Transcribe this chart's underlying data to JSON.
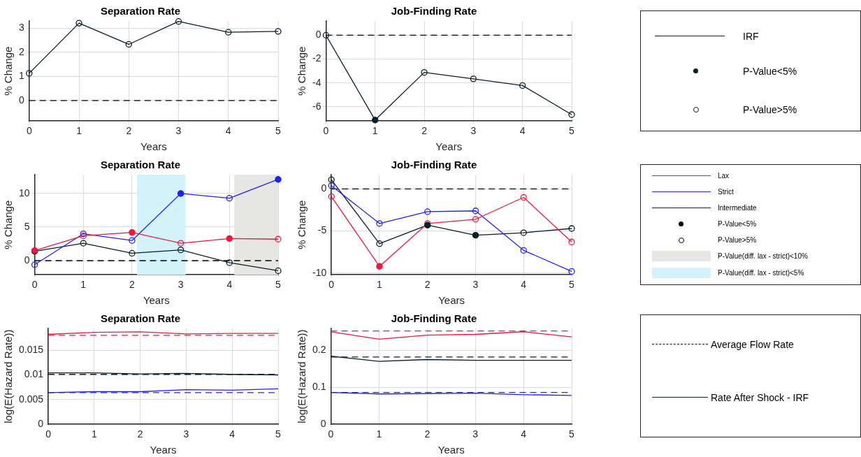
{
  "chart_data": [
    {
      "type": "line",
      "title": "Separation Rate",
      "xlabel": "Years",
      "ylabel": "% Change",
      "x": [
        0,
        1,
        2,
        3,
        4,
        5
      ],
      "xlim": [
        0,
        5
      ],
      "xticks": [
        0,
        1,
        2,
        3,
        4,
        5
      ],
      "ylim": [
        -0.85,
        3.3
      ],
      "yticks": [
        0,
        1,
        2,
        3
      ],
      "grid": true,
      "marker": "circle",
      "series": [
        {
          "color": "#0b1e2a",
          "values": [
            1.13,
            3.21,
            2.33,
            3.28,
            2.83,
            2.87
          ]
        }
      ],
      "ref_lines": [
        {
          "axis": "y",
          "value": 0,
          "color": "#000000",
          "line_style": "dashed"
        }
      ]
    },
    {
      "type": "line",
      "title": "Job-Finding Rate",
      "xlabel": "Years",
      "ylabel": "% Change",
      "x": [
        0,
        1,
        2,
        3,
        4,
        5
      ],
      "xlim": [
        0,
        5
      ],
      "xticks": [
        0,
        1,
        2,
        3,
        4,
        5
      ],
      "ylim": [
        -7.2,
        1.2
      ],
      "yticks": [
        -6,
        -4,
        -2,
        0
      ],
      "grid": true,
      "marker": "circle",
      "series": [
        {
          "color": "#0b1e2a",
          "values": [
            0,
            -7.12,
            -3.12,
            -3.66,
            -4.22,
            -6.66
          ]
        },
        {
          "type": "scatter",
          "color": "#0b1e2a",
          "x": [
            1
          ],
          "values": [
            -7.12
          ]
        }
      ],
      "ref_lines": [
        {
          "axis": "y",
          "value": 0,
          "color": "#000000",
          "line_style": "dashed"
        }
      ]
    },
    {
      "type": "other",
      "annotations": [
        "IRF",
        "P-Value<5%",
        "P-Value>5%"
      ]
    },
    {
      "type": "line",
      "title": "Separation Rate",
      "xlabel": "Years",
      "ylabel": "% Change",
      "x": [
        0,
        1,
        2,
        3,
        4,
        5
      ],
      "xlim": [
        0,
        5
      ],
      "xticks": [
        0,
        1,
        2,
        3,
        4,
        5
      ],
      "ylim": [
        -2.1,
        12.8
      ],
      "yticks": [
        0,
        5,
        10
      ],
      "grid": true,
      "marker": "circle",
      "series": [
        {
          "color": "#f0163c",
          "values": [
            1.5,
            3.7,
            4.2,
            2.6,
            3.3,
            3.2
          ]
        },
        {
          "color": "#2020ff",
          "values": [
            -0.6,
            4.0,
            3.0,
            10.0,
            9.3,
            12.1
          ]
        },
        {
          "color": "#0b1e2a",
          "values": [
            1.4,
            2.6,
            1.1,
            1.6,
            -0.3,
            -1.5
          ]
        },
        {
          "type": "scatter",
          "color": "#f0163c",
          "x": [
            0,
            2,
            4
          ],
          "values": [
            1.5,
            4.2,
            3.3
          ]
        },
        {
          "type": "scatter",
          "color": "#2020ff",
          "x": [
            3,
            5
          ],
          "values": [
            10.0,
            12.1
          ]
        },
        {
          "type": "scatter",
          "color": "#0b1e2a",
          "x": [
            0
          ],
          "values": [
            1.4
          ]
        }
      ],
      "bands": [
        {
          "axis": "x",
          "from": 2.1,
          "to": 3.1,
          "color": "#d3f2fa"
        },
        {
          "axis": "x",
          "from": 4.1,
          "to": 5,
          "color": "#e6e7e3"
        }
      ],
      "ref_lines": [
        {
          "axis": "y",
          "value": 0,
          "color": "#000000",
          "line_style": "dashed"
        }
      ]
    },
    {
      "type": "line",
      "title": "Job-Finding Rate",
      "xlabel": "Years",
      "ylabel": "% Change",
      "x": [
        0,
        1,
        2,
        3,
        4,
        5
      ],
      "xlim": [
        0,
        5
      ],
      "xticks": [
        0,
        1,
        2,
        3,
        4,
        5
      ],
      "ylim": [
        -10.2,
        1.7
      ],
      "yticks": [
        -10,
        -5,
        0
      ],
      "grid": true,
      "marker": "circle",
      "series": [
        {
          "color": "#f0163c",
          "values": [
            -0.9,
            -9.2,
            -4.1,
            -3.6,
            -1.0,
            -6.3
          ]
        },
        {
          "color": "#2020ff",
          "values": [
            0.4,
            -4.1,
            -2.7,
            -2.6,
            -7.3,
            -9.8
          ]
        },
        {
          "color": "#0b1e2a",
          "values": [
            1.1,
            -6.5,
            -4.3,
            -5.5,
            -5.2,
            -4.7
          ]
        },
        {
          "type": "scatter",
          "color": "#f0163c",
          "x": [
            1
          ],
          "values": [
            -9.2
          ]
        },
        {
          "type": "scatter",
          "color": "#0b1e2a",
          "x": [
            2,
            3
          ],
          "values": [
            -4.3,
            -5.5
          ]
        }
      ],
      "ref_lines": [
        {
          "axis": "y",
          "value": 0,
          "color": "#000000",
          "line_style": "dashed"
        }
      ]
    },
    {
      "type": "other",
      "annotations": [
        "Lax",
        "Strict",
        "Intermediate",
        "P-Value<5%",
        "P-Value>5%",
        "P-Value(diff. lax - strict)<10%",
        "P-Value(diff. lax - strict)<5%"
      ]
    },
    {
      "type": "line",
      "title": "Separation Rate",
      "xlabel": "Years",
      "ylabel": "log(E(Hazard Rate))",
      "x": [
        0,
        1,
        2,
        3,
        4,
        5
      ],
      "xlim": [
        0,
        5
      ],
      "xticks": [
        0,
        1,
        2,
        3,
        4,
        5
      ],
      "ylim": [
        0,
        0.0194
      ],
      "yticks": [
        0,
        0.005,
        0.01,
        0.015
      ],
      "grid": true,
      "series": [
        {
          "color": "#f0163c",
          "values": [
            0.0182,
            0.0186,
            0.0187,
            0.0183,
            0.0184,
            0.0184
          ]
        },
        {
          "color": "#0b1e2a",
          "values": [
            0.0104,
            0.0104,
            0.0102,
            0.0103,
            0.0101,
            0.01
          ]
        },
        {
          "color": "#2020ff",
          "values": [
            0.0064,
            0.0066,
            0.0066,
            0.007,
            0.0069,
            0.0072
          ]
        }
      ],
      "ref_lines": [
        {
          "axis": "y",
          "value": 0.018,
          "color": "#f0163c",
          "line_style": "dashed"
        },
        {
          "axis": "y",
          "value": 0.0101,
          "color": "#0b1e2a",
          "line_style": "dashed"
        },
        {
          "axis": "y",
          "value": 0.0064,
          "color": "#2020ff",
          "line_style": "dashed"
        }
      ]
    },
    {
      "type": "line",
      "title": "Job-Finding Rate",
      "xlabel": "Years",
      "ylabel": "log(E(Hazard Rate))",
      "x": [
        0,
        1,
        2,
        3,
        4,
        5
      ],
      "xlim": [
        0,
        5
      ],
      "xticks": [
        0,
        1,
        2,
        3,
        4,
        5
      ],
      "ylim": [
        0,
        0.259
      ],
      "yticks": [
        0,
        0.1,
        0.2
      ],
      "grid": true,
      "series": [
        {
          "color": "#f0163c",
          "values": [
            0.25,
            0.23,
            0.241,
            0.243,
            0.25,
            0.236
          ]
        },
        {
          "color": "#0b1e2a",
          "values": [
            0.184,
            0.17,
            0.175,
            0.173,
            0.173,
            0.173
          ]
        },
        {
          "color": "#2020ff",
          "values": [
            0.086,
            0.082,
            0.083,
            0.084,
            0.08,
            0.078
          ]
        }
      ],
      "ref_lines": [
        {
          "axis": "y",
          "value": 0.252,
          "color": "#f0163c",
          "line_style": "dashed"
        },
        {
          "axis": "y",
          "value": 0.182,
          "color": "#0b1e2a",
          "line_style": "dashed"
        },
        {
          "axis": "y",
          "value": 0.086,
          "color": "#2020ff",
          "line_style": "dashed"
        }
      ]
    },
    {
      "type": "other",
      "annotations": [
        "Average Flow Rate",
        "Rate After Shock - IRF"
      ]
    }
  ]
}
